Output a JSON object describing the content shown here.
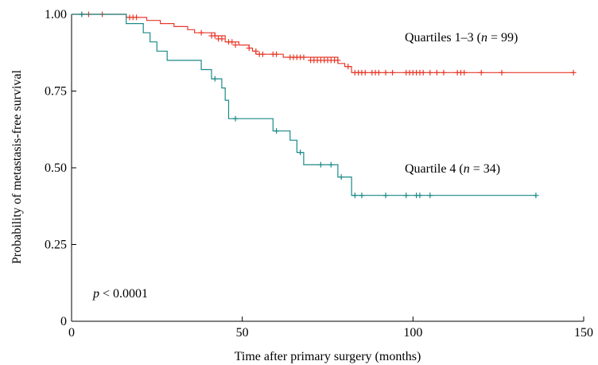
{
  "chart_data": {
    "type": "line",
    "subtype": "kaplan-meier",
    "xlabel": "Time after primary surgery (months)",
    "ylabel": "Probability of metastasis-free survival",
    "xlim": [
      0,
      150
    ],
    "ylim": [
      0,
      1.0
    ],
    "x_ticks": [
      {
        "value": 0,
        "label": "0"
      },
      {
        "value": 50,
        "label": "50"
      },
      {
        "value": 100,
        "label": "100"
      },
      {
        "value": 150,
        "label": "150"
      }
    ],
    "y_ticks": [
      {
        "value": 0,
        "label": "0"
      },
      {
        "value": 0.25,
        "label": "0.25"
      },
      {
        "value": 0.5,
        "label": "0.50"
      },
      {
        "value": 0.75,
        "label": "0.75"
      },
      {
        "value": 1.0,
        "label": "1.00"
      }
    ],
    "grid": false,
    "annotation": {
      "prefix": "p",
      "text": " < 0.0001"
    },
    "series": [
      {
        "name": "Quartiles 1–3 (n = 99)",
        "label_parts": {
          "before": "Quartiles 1–3 (",
          "italic": "n",
          "after": " = 99)"
        },
        "color": "#e8392a",
        "steps": [
          [
            0,
            1.0
          ],
          [
            16,
            1.0
          ],
          [
            16,
            0.99
          ],
          [
            22,
            0.99
          ],
          [
            22,
            0.98
          ],
          [
            26,
            0.98
          ],
          [
            26,
            0.97
          ],
          [
            30,
            0.97
          ],
          [
            30,
            0.96
          ],
          [
            34,
            0.96
          ],
          [
            34,
            0.95
          ],
          [
            36,
            0.95
          ],
          [
            36,
            0.94
          ],
          [
            42,
            0.94
          ],
          [
            42,
            0.93
          ],
          [
            45,
            0.93
          ],
          [
            45,
            0.91
          ],
          [
            49,
            0.91
          ],
          [
            49,
            0.9
          ],
          [
            52,
            0.9
          ],
          [
            52,
            0.89
          ],
          [
            53,
            0.89
          ],
          [
            53,
            0.88
          ],
          [
            54,
            0.88
          ],
          [
            54,
            0.87
          ],
          [
            62,
            0.87
          ],
          [
            62,
            0.86
          ],
          [
            78,
            0.86
          ],
          [
            78,
            0.84
          ],
          [
            80,
            0.84
          ],
          [
            80,
            0.83
          ],
          [
            82,
            0.83
          ],
          [
            82,
            0.81
          ],
          [
            147,
            0.81
          ]
        ],
        "censored": [
          [
            3,
            1.0
          ],
          [
            5,
            1.0
          ],
          [
            9,
            1.0
          ],
          [
            17,
            0.99
          ],
          [
            18,
            0.99
          ],
          [
            19,
            0.99
          ],
          [
            38,
            0.94
          ],
          [
            41,
            0.93
          ],
          [
            42,
            0.93
          ],
          [
            43,
            0.92
          ],
          [
            44,
            0.92
          ],
          [
            46,
            0.91
          ],
          [
            47,
            0.91
          ],
          [
            48,
            0.9
          ],
          [
            52,
            0.89
          ],
          [
            54,
            0.88
          ],
          [
            55,
            0.87
          ],
          [
            56,
            0.87
          ],
          [
            59,
            0.87
          ],
          [
            60,
            0.87
          ],
          [
            64,
            0.86
          ],
          [
            65,
            0.86
          ],
          [
            66,
            0.86
          ],
          [
            67,
            0.86
          ],
          [
            68,
            0.86
          ],
          [
            70,
            0.85
          ],
          [
            71,
            0.85
          ],
          [
            72,
            0.85
          ],
          [
            73,
            0.85
          ],
          [
            74,
            0.85
          ],
          [
            75,
            0.85
          ],
          [
            76,
            0.85
          ],
          [
            77,
            0.85
          ],
          [
            78,
            0.85
          ],
          [
            81,
            0.83
          ],
          [
            83,
            0.81
          ],
          [
            84,
            0.81
          ],
          [
            85,
            0.81
          ],
          [
            86,
            0.81
          ],
          [
            88,
            0.81
          ],
          [
            89,
            0.81
          ],
          [
            90,
            0.81
          ],
          [
            92,
            0.81
          ],
          [
            94,
            0.81
          ],
          [
            98,
            0.81
          ],
          [
            99,
            0.81
          ],
          [
            100,
            0.81
          ],
          [
            101,
            0.81
          ],
          [
            102,
            0.81
          ],
          [
            103,
            0.81
          ],
          [
            105,
            0.81
          ],
          [
            107,
            0.81
          ],
          [
            109,
            0.81
          ],
          [
            113,
            0.81
          ],
          [
            114,
            0.81
          ],
          [
            115,
            0.81
          ],
          [
            120,
            0.81
          ],
          [
            126,
            0.81
          ],
          [
            147,
            0.81
          ]
        ]
      },
      {
        "name": "Quartile 4 (n = 34)",
        "label_parts": {
          "before": "Quartile 4 (",
          "italic": "n",
          "after": " = 34)"
        },
        "color": "#1a8a87",
        "steps": [
          [
            0,
            1.0
          ],
          [
            16,
            1.0
          ],
          [
            16,
            0.97
          ],
          [
            21,
            0.97
          ],
          [
            21,
            0.94
          ],
          [
            23,
            0.94
          ],
          [
            23,
            0.91
          ],
          [
            25,
            0.91
          ],
          [
            25,
            0.88
          ],
          [
            28,
            0.88
          ],
          [
            28,
            0.85
          ],
          [
            38,
            0.85
          ],
          [
            38,
            0.82
          ],
          [
            41,
            0.82
          ],
          [
            41,
            0.79
          ],
          [
            44,
            0.79
          ],
          [
            44,
            0.76
          ],
          [
            45,
            0.76
          ],
          [
            45,
            0.72
          ],
          [
            46,
            0.72
          ],
          [
            46,
            0.66
          ],
          [
            59,
            0.66
          ],
          [
            59,
            0.62
          ],
          [
            64,
            0.62
          ],
          [
            64,
            0.59
          ],
          [
            66,
            0.59
          ],
          [
            66,
            0.55
          ],
          [
            68,
            0.55
          ],
          [
            68,
            0.51
          ],
          [
            78,
            0.51
          ],
          [
            78,
            0.47
          ],
          [
            82,
            0.47
          ],
          [
            82,
            0.41
          ],
          [
            136,
            0.41
          ]
        ],
        "censored": [
          [
            3,
            1.0
          ],
          [
            42,
            0.79
          ],
          [
            48,
            0.66
          ],
          [
            60,
            0.62
          ],
          [
            67,
            0.55
          ],
          [
            73,
            0.51
          ],
          [
            76,
            0.51
          ],
          [
            79,
            0.47
          ],
          [
            83,
            0.41
          ],
          [
            85,
            0.41
          ],
          [
            92,
            0.41
          ],
          [
            98,
            0.41
          ],
          [
            101,
            0.41
          ],
          [
            102,
            0.41
          ],
          [
            105,
            0.41
          ],
          [
            136,
            0.41
          ]
        ]
      }
    ]
  }
}
